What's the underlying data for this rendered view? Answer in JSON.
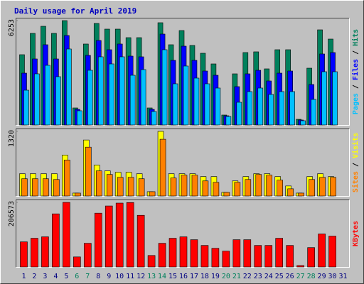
{
  "chart_data": [
    {
      "type": "bar",
      "title": "Daily usage for April 2019",
      "ylim": [
        0,
        6253
      ],
      "yticks": [
        6253
      ],
      "legend_separator": " / ",
      "series": [
        {
          "name": "Hits",
          "color": "#00805c",
          "values": [
            4211,
            5488,
            5913,
            5488,
            6253,
            1021,
            4850,
            6083,
            5743,
            5743,
            5232,
            5232,
            1021,
            6126,
            4807,
            5658,
            4764,
            4297,
            3658,
            596,
            3063,
            4339,
            4382,
            3361,
            4509,
            4509,
            340,
            3403,
            5700,
            5147,
            null
          ]
        },
        {
          "name": "Files",
          "color": "#0000ff",
          "values": [
            3105,
            3956,
            4807,
            3956,
            5360,
            936,
            4169,
            5062,
            4509,
            4850,
            4126,
            4084,
            936,
            5445,
            3871,
            4722,
            3871,
            3233,
            2978,
            553,
            2297,
            3063,
            3276,
            2637,
            3105,
            3233,
            298,
            2425,
            4254,
            4339,
            null
          ]
        },
        {
          "name": "Pages",
          "color": "#00c0ff",
          "values": [
            2084,
            3063,
            3573,
            2893,
            4552,
            851,
            3276,
            4084,
            3658,
            4084,
            2978,
            3318,
            808,
            4509,
            2467,
            3531,
            2808,
            2467,
            2212,
            510,
            1361,
            1999,
            2212,
            1829,
            1999,
            1999,
            255,
            1531,
            3190,
            3190,
            null
          ]
        }
      ]
    },
    {
      "type": "bar",
      "ylim": [
        0,
        1320
      ],
      "yticks": [
        1320
      ],
      "legend_separator": " / ",
      "series": [
        {
          "name": "Visits",
          "color": "#ffff00",
          "values": [
            455,
            455,
            455,
            455,
            836,
            59,
            1144,
            631,
            513,
            484,
            484,
            455,
            88,
            1320,
            455,
            455,
            455,
            396,
            396,
            73,
            308,
            396,
            455,
            455,
            396,
            205,
            59,
            396,
            455,
            396,
            null
          ]
        },
        {
          "name": "Sites",
          "color": "#ff8000",
          "values": [
            352,
            352,
            352,
            337,
            734,
            59,
            998,
            513,
            440,
            381,
            381,
            352,
            88,
            1159,
            367,
            425,
            425,
            308,
            279,
            73,
            279,
            337,
            440,
            425,
            323,
            147,
            59,
            337,
            381,
            381,
            null
          ]
        }
      ]
    },
    {
      "type": "bar",
      "ylim": [
        0,
        206573
      ],
      "yticks": [
        206573
      ],
      "categories": [
        "1",
        "2",
        "3",
        "4",
        "5",
        "6",
        "7",
        "8",
        "9",
        "10",
        "11",
        "12",
        "13",
        "14",
        "15",
        "16",
        "17",
        "18",
        "19",
        "20",
        "21",
        "22",
        "23",
        "24",
        "25",
        "26",
        "27",
        "28",
        "29",
        "30",
        "31"
      ],
      "category_colors": [
        "#000080",
        "#000080",
        "#000080",
        "#000080",
        "#000080",
        "#00805c",
        "#00805c",
        "#000080",
        "#000080",
        "#000080",
        "#000080",
        "#000080",
        "#00805c",
        "#00805c",
        "#000080",
        "#000080",
        "#000080",
        "#000080",
        "#000080",
        "#00805c",
        "#00805c",
        "#000080",
        "#000080",
        "#000080",
        "#000080",
        "#000080",
        "#00805c",
        "#00805c",
        "#000080",
        "#000080",
        "#000080"
      ],
      "series": [
        {
          "name": "KBytes",
          "color": "#ff0000",
          "values": [
            80325,
            91800,
            96390,
            169830,
            206573,
            32130,
            75735,
            172125,
            195075,
            204255,
            206000,
            165240,
            36720,
            75735,
            91800,
            96390,
            87210,
            68850,
            59670,
            50490,
            87210,
            87210,
            68850,
            68850,
            91800,
            68850,
            4590,
            61965,
            105570,
            98685,
            null
          ]
        }
      ]
    }
  ]
}
